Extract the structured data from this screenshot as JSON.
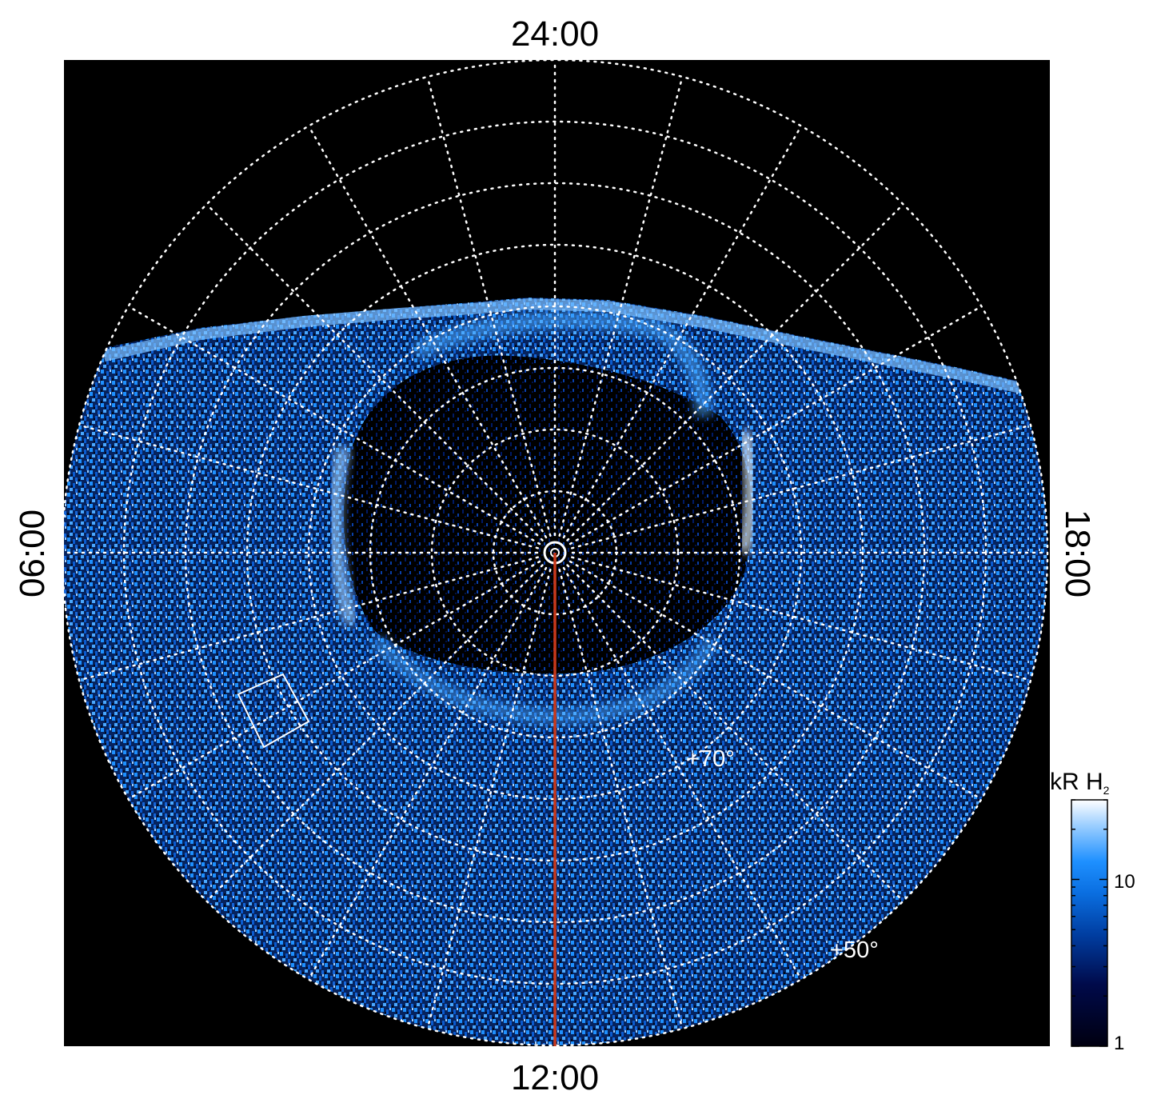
{
  "labels": {
    "top": "24:00",
    "bottom": "12:00",
    "left": "06:00",
    "right": "18:00"
  },
  "latitude_labels": {
    "lat70": "+70°",
    "lat50": "+50°"
  },
  "colorbar": {
    "unit_main": "kR H",
    "unit_sub": "2",
    "tick_high": "10",
    "tick_low": "1",
    "colors": [
      "#000010",
      "#000a4a",
      "#003da0",
      "#0a6ee0",
      "#1e90ff",
      "#9fd0ff",
      "#ffffff"
    ]
  },
  "colors": {
    "background": "#000000",
    "grid": "#ffffff",
    "meridian_line": "#c8381a",
    "emission": "#1e90ff"
  }
}
